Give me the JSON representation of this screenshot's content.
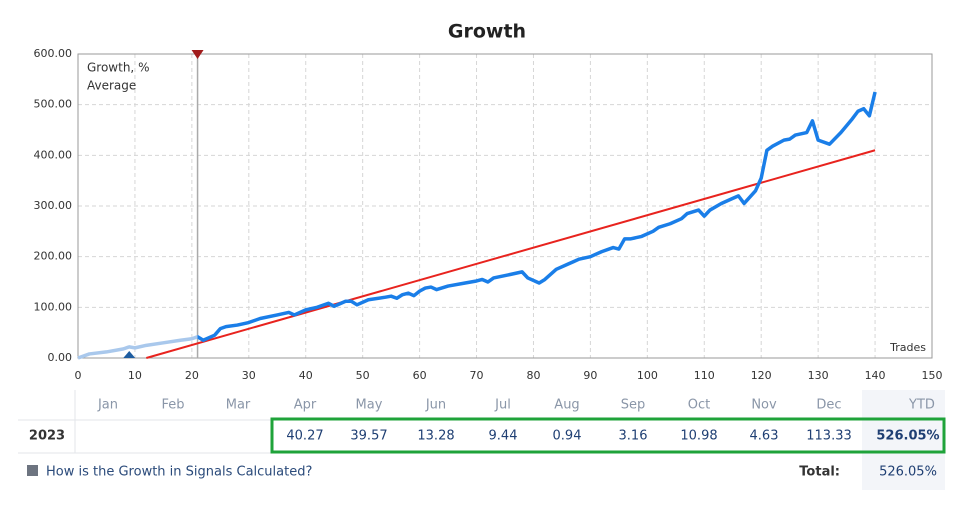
{
  "chart_data": {
    "type": "line",
    "title": "Growth",
    "x_label": "Trades",
    "series": [
      {
        "name": "Growth, %",
        "color": "#1a7ee8",
        "faded_color": "#a9c8ec",
        "x": [
          0,
          2,
          5,
          8,
          9,
          10,
          12,
          15,
          18,
          20,
          21,
          22,
          24,
          25,
          26,
          28,
          30,
          32,
          35,
          37,
          38,
          40,
          42,
          44,
          45,
          47,
          48,
          49,
          51,
          54,
          55,
          56,
          57,
          58,
          59,
          60,
          61,
          62,
          63,
          65,
          68,
          70,
          71,
          72,
          73,
          76,
          78,
          79,
          81,
          82,
          84,
          86,
          87,
          88,
          90,
          92,
          94,
          95,
          96,
          97,
          99,
          101,
          102,
          104,
          106,
          107,
          109,
          110,
          111,
          113,
          115,
          116,
          117,
          119,
          120,
          121,
          122,
          124,
          125,
          126,
          128,
          129,
          130,
          132,
          134,
          136,
          137,
          138,
          139,
          140
        ],
        "values": [
          0,
          8,
          12,
          18,
          22,
          20,
          25,
          30,
          35,
          38,
          42,
          35,
          45,
          58,
          62,
          65,
          70,
          78,
          85,
          90,
          85,
          95,
          100,
          108,
          102,
          112,
          112,
          105,
          115,
          120,
          122,
          118,
          125,
          128,
          123,
          132,
          138,
          140,
          135,
          142,
          148,
          152,
          155,
          150,
          158,
          165,
          170,
          158,
          148,
          155,
          175,
          185,
          190,
          195,
          200,
          210,
          218,
          215,
          235,
          235,
          240,
          250,
          258,
          265,
          275,
          285,
          292,
          280,
          292,
          305,
          315,
          320,
          305,
          330,
          355,
          410,
          418,
          430,
          432,
          440,
          445,
          468,
          430,
          422,
          445,
          472,
          487,
          492,
          478,
          525
        ]
      },
      {
        "name": "Average",
        "color": "#e8231e",
        "x": [
          12,
          140
        ],
        "values": [
          0,
          410
        ]
      }
    ],
    "highlight_x": 21,
    "low_marker_x": 9,
    "xlim": [
      0,
      150
    ],
    "xticks": [
      0,
      10,
      20,
      30,
      40,
      50,
      60,
      70,
      80,
      90,
      100,
      110,
      120,
      130,
      140,
      150
    ],
    "ylim": [
      0,
      600
    ],
    "yticks": [
      {
        "value": 0,
        "label": "0.00"
      },
      {
        "value": 100,
        "label": "100.00"
      },
      {
        "value": 200,
        "label": "200.00"
      },
      {
        "value": 300,
        "label": "300.00"
      },
      {
        "value": 400,
        "label": "400.00"
      },
      {
        "value": 500,
        "label": "500.00"
      },
      {
        "value": 600,
        "label": "600.00"
      }
    ],
    "grid": true
  },
  "table": {
    "months": [
      "Jan",
      "Feb",
      "Mar",
      "Apr",
      "May",
      "Jun",
      "Jul",
      "Aug",
      "Sep",
      "Oct",
      "Nov",
      "Dec"
    ],
    "ytd_label": "YTD",
    "year": "2023",
    "values": [
      null,
      null,
      null,
      40.27,
      39.57,
      13.28,
      9.44,
      0.94,
      3.16,
      10.98,
      4.63,
      113.33
    ],
    "ytd": "526.05%",
    "link": "How is the Growth in Signals Calculated?",
    "total_label": "Total:",
    "total": "526.05%"
  }
}
